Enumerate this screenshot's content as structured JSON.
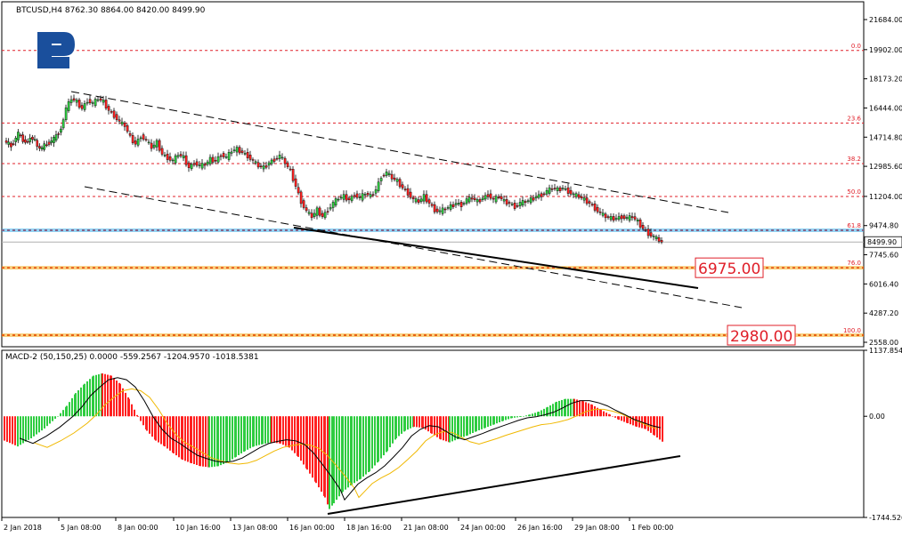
{
  "main_header": "BTCUSD,H4  8762.30 8864.00 8420.00 8499.90",
  "macd_header": "MACD-2 (50,150,25) 0.0000 -559.2567 -1204.9570 -1018.5381",
  "current_price_label": "8499.90",
  "colors": {
    "bull": "#2ecc40",
    "bear": "#ff2020",
    "fib": "#e0202a",
    "target": "#f0a000",
    "support_blue": "#2aa7e8",
    "macd_signal": "#000000",
    "macd_signal2": "#f0b800",
    "trendline": "#000000"
  },
  "chart_data": [
    {
      "type": "candlestick",
      "title": "BTCUSD,H4",
      "ohlc_last": {
        "open": 8762.3,
        "high": 8864.0,
        "low": 8420.0,
        "close": 8499.9
      },
      "ylim": [
        2558.0,
        21684.0
      ],
      "y_tick_labels": [
        "21684.00",
        "19902.00",
        "18173.20",
        "16444.00",
        "14714.80",
        "12985.60",
        "11204.00",
        "9474.80",
        "7745.60",
        "6016.40",
        "4287.20",
        "2558.00"
      ],
      "x_tick_labels": [
        "2 Jan 2018",
        "5 Jan 08:00",
        "8 Jan 00:00",
        "10 Jan 16:00",
        "13 Jan 08:00",
        "16 Jan 00:00",
        "18 Jan 16:00",
        "21 Jan 08:00",
        "24 Jan 00:00",
        "26 Jan 16:00",
        "29 Jan 08:00",
        "1 Feb 00:00"
      ],
      "fibonacci_levels": [
        {
          "label": "0.0",
          "price": 19850
        },
        {
          "label": "23.6",
          "price": 15550
        },
        {
          "label": "38.2",
          "price": 13150
        },
        {
          "label": "50.0",
          "price": 11200
        },
        {
          "label": "61.8",
          "price": 9200
        },
        {
          "label": "76.0",
          "price": 6975
        },
        {
          "label": "100.0",
          "price": 2980
        }
      ],
      "targets": [
        6975.0,
        2980.0
      ],
      "target_labels": [
        "6975.00",
        "2980.00"
      ],
      "close_path": [
        [
          0,
          14500
        ],
        [
          8,
          14200
        ],
        [
          16,
          14900
        ],
        [
          24,
          14400
        ],
        [
          32,
          14700
        ],
        [
          40,
          14000
        ],
        [
          48,
          14300
        ],
        [
          56,
          14600
        ],
        [
          64,
          15200
        ],
        [
          70,
          16400
        ],
        [
          76,
          17000
        ],
        [
          82,
          16800
        ],
        [
          88,
          16400
        ],
        [
          94,
          16900
        ],
        [
          100,
          16700
        ],
        [
          106,
          17000
        ],
        [
          112,
          16800
        ],
        [
          118,
          16300
        ],
        [
          124,
          16000
        ],
        [
          130,
          15600
        ],
        [
          136,
          15400
        ],
        [
          142,
          14700
        ],
        [
          148,
          14300
        ],
        [
          154,
          14800
        ],
        [
          160,
          14500
        ],
        [
          166,
          14100
        ],
        [
          172,
          14400
        ],
        [
          178,
          13700
        ],
        [
          184,
          13500
        ],
        [
          190,
          13300
        ],
        [
          196,
          13700
        ],
        [
          202,
          13500
        ],
        [
          208,
          12900
        ],
        [
          214,
          13200
        ],
        [
          220,
          13000
        ],
        [
          226,
          13100
        ],
        [
          232,
          13400
        ],
        [
          238,
          13300
        ],
        [
          244,
          13700
        ],
        [
          250,
          13500
        ],
        [
          256,
          13900
        ],
        [
          262,
          14000
        ],
        [
          268,
          13800
        ],
        [
          274,
          13600
        ],
        [
          280,
          13300
        ],
        [
          286,
          13000
        ],
        [
          292,
          12900
        ],
        [
          298,
          13200
        ],
        [
          304,
          13400
        ],
        [
          310,
          13600
        ],
        [
          316,
          13200
        ],
        [
          322,
          12700
        ],
        [
          328,
          11800
        ],
        [
          334,
          10900
        ],
        [
          340,
          10300
        ],
        [
          346,
          10000
        ],
        [
          352,
          10400
        ],
        [
          358,
          10000
        ],
        [
          364,
          10400
        ],
        [
          370,
          10800
        ],
        [
          376,
          11100
        ],
        [
          382,
          11200
        ],
        [
          388,
          11000
        ],
        [
          394,
          11300
        ],
        [
          400,
          11100
        ],
        [
          406,
          11400
        ],
        [
          412,
          11200
        ],
        [
          418,
          11600
        ],
        [
          424,
          12400
        ],
        [
          430,
          12600
        ],
        [
          436,
          12300
        ],
        [
          442,
          12100
        ],
        [
          448,
          11700
        ],
        [
          454,
          11400
        ],
        [
          460,
          11000
        ],
        [
          466,
          10900
        ],
        [
          472,
          11200
        ],
        [
          478,
          10800
        ],
        [
          484,
          10400
        ],
        [
          490,
          10300
        ],
        [
          496,
          10500
        ],
        [
          502,
          10600
        ],
        [
          508,
          10800
        ],
        [
          514,
          10700
        ],
        [
          520,
          11000
        ],
        [
          526,
          11100
        ],
        [
          532,
          10900
        ],
        [
          538,
          11100
        ],
        [
          544,
          11300
        ],
        [
          550,
          11000
        ],
        [
          556,
          11200
        ],
        [
          562,
          10900
        ],
        [
          568,
          10800
        ],
        [
          574,
          10600
        ],
        [
          580,
          10800
        ],
        [
          586,
          10900
        ],
        [
          592,
          11000
        ],
        [
          598,
          11200
        ],
        [
          604,
          11300
        ],
        [
          610,
          11500
        ],
        [
          616,
          11700
        ],
        [
          622,
          11600
        ],
        [
          628,
          11700
        ],
        [
          634,
          11500
        ],
        [
          640,
          11300
        ],
        [
          646,
          11200
        ],
        [
          652,
          11000
        ],
        [
          658,
          10800
        ],
        [
          664,
          10500
        ],
        [
          670,
          10200
        ],
        [
          676,
          10000
        ],
        [
          682,
          9900
        ],
        [
          688,
          9900
        ],
        [
          694,
          10000
        ],
        [
          700,
          9900
        ],
        [
          706,
          10000
        ],
        [
          712,
          9700
        ],
        [
          718,
          9300
        ],
        [
          724,
          9000
        ],
        [
          730,
          8800
        ],
        [
          736,
          8600
        ],
        [
          740,
          8500
        ]
      ]
    },
    {
      "type": "bar",
      "title": "MACD-2 (50,150,25)",
      "values_summary": {
        "main": 0.0,
        "signal": -559.2567,
        "line1": -1204.957,
        "line2": -1018.5381
      },
      "ylim": [
        -1744.526,
        1137.854
      ],
      "y_tick_labels": [
        "1137.854",
        "0.00",
        "-1744.526"
      ],
      "histogram": [
        [
          0,
          -420
        ],
        [
          15,
          -520
        ],
        [
          30,
          -380
        ],
        [
          45,
          -210
        ],
        [
          60,
          0
        ],
        [
          70,
          180
        ],
        [
          80,
          400
        ],
        [
          90,
          560
        ],
        [
          100,
          700
        ],
        [
          110,
          740
        ],
        [
          120,
          700
        ],
        [
          130,
          560
        ],
        [
          140,
          300
        ],
        [
          150,
          -10
        ],
        [
          160,
          -250
        ],
        [
          170,
          -420
        ],
        [
          180,
          -520
        ],
        [
          190,
          -640
        ],
        [
          200,
          -750
        ],
        [
          210,
          -810
        ],
        [
          220,
          -860
        ],
        [
          230,
          -880
        ],
        [
          240,
          -860
        ],
        [
          250,
          -800
        ],
        [
          260,
          -700
        ],
        [
          270,
          -600
        ],
        [
          280,
          -520
        ],
        [
          290,
          -480
        ],
        [
          300,
          -450
        ],
        [
          310,
          -470
        ],
        [
          320,
          -540
        ],
        [
          330,
          -700
        ],
        [
          340,
          -920
        ],
        [
          350,
          -1150
        ],
        [
          360,
          -1400
        ],
        [
          365,
          -1600
        ],
        [
          370,
          -1500
        ],
        [
          380,
          -1300
        ],
        [
          390,
          -1180
        ],
        [
          400,
          -1080
        ],
        [
          410,
          -950
        ],
        [
          420,
          -780
        ],
        [
          430,
          -600
        ],
        [
          440,
          -380
        ],
        [
          450,
          -250
        ],
        [
          460,
          -180
        ],
        [
          470,
          -200
        ],
        [
          480,
          -300
        ],
        [
          490,
          -400
        ],
        [
          500,
          -450
        ],
        [
          510,
          -390
        ],
        [
          520,
          -330
        ],
        [
          530,
          -260
        ],
        [
          540,
          -200
        ],
        [
          550,
          -140
        ],
        [
          560,
          -80
        ],
        [
          570,
          -30
        ],
        [
          580,
          -10
        ],
        [
          590,
          30
        ],
        [
          600,
          80
        ],
        [
          610,
          160
        ],
        [
          620,
          250
        ],
        [
          630,
          300
        ],
        [
          640,
          300
        ],
        [
          650,
          260
        ],
        [
          660,
          200
        ],
        [
          670,
          110
        ],
        [
          680,
          30
        ],
        [
          690,
          -60
        ],
        [
          700,
          -120
        ],
        [
          710,
          -180
        ],
        [
          720,
          -220
        ],
        [
          730,
          -330
        ],
        [
          740,
          -450
        ]
      ]
    }
  ]
}
